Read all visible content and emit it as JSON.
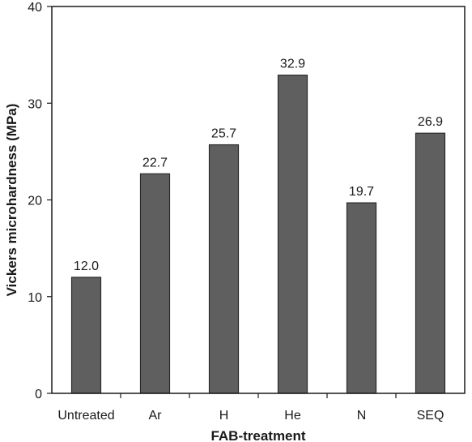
{
  "chart_data": {
    "type": "bar",
    "categories": [
      "Untreated",
      "Ar",
      "H",
      "He",
      "N",
      "SEQ"
    ],
    "values": [
      12.0,
      22.7,
      25.7,
      32.9,
      19.7,
      26.9
    ],
    "data_labels": [
      "12.0",
      "22.7",
      "25.7",
      "32.9",
      "19.7",
      "26.9"
    ],
    "title": "",
    "xlabel": "FAB-treatment",
    "ylabel": "Vickers microhardness (MPa)",
    "ylim": [
      0,
      40
    ],
    "yticks": [
      0,
      10,
      20,
      30,
      40
    ],
    "ytick_labels": [
      "0",
      "10",
      "20",
      "30",
      "40"
    ],
    "grid": false,
    "legend": "none",
    "colors": {
      "bar_fill": "#5f5f5f",
      "bar_edge": "#2a2a2a",
      "axis": "#1a1a1a"
    }
  }
}
